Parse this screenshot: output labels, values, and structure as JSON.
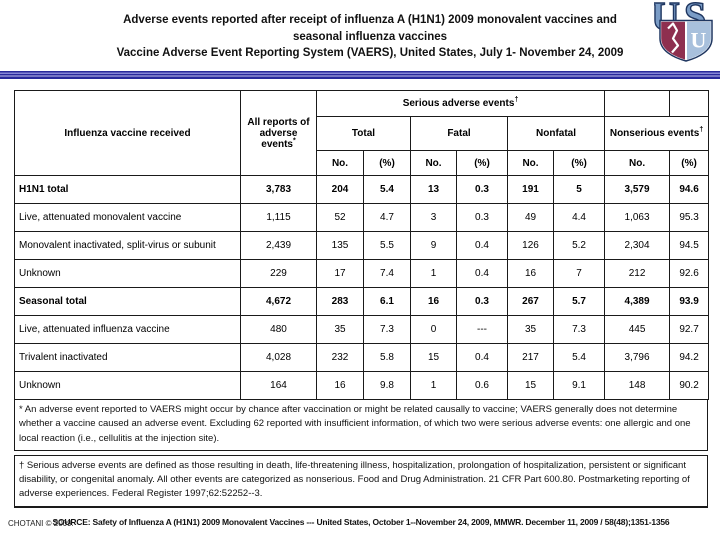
{
  "page": {
    "title_lines": [
      "Adverse events reported after receipt of influenza A (H1N1) 2009 monovalent vaccines and",
      "seasonal influenza vaccines",
      "Vaccine Adverse Event Reporting System (VAERS), United States, July 1- November 24, 2009"
    ],
    "logo_name": "usu-shield-logo",
    "source_line": "SOURCE: Safety of Influenza A (H1N1) 2009 Monovalent Vaccines --- United States, October 1--November 24, 2009, MMWR. December 11, 2009 / 58(48);1351-1356",
    "copyright": "CHOTANI © 2009."
  },
  "colors": {
    "band_dark_blue": "#28289b",
    "band_light_blue": "#8585d6",
    "shield_maroon": "#8e2f4f",
    "shield_steel_blue": "#7a9cc6",
    "shield_light_blue": "#a8c0dc",
    "shield_navy": "#1f3660",
    "table_border": "#1a1a1a"
  },
  "table": {
    "headers": {
      "col_vaccine": "Influenza vaccine received",
      "col_all_reports": "All reports of adverse events",
      "col_all_reports_sup": "*",
      "group_serious": "Serious adverse events",
      "group_serious_sup": "†",
      "sub_total": "Total",
      "sub_fatal": "Fatal",
      "sub_nonfatal": "Nonfatal",
      "col_nonserious": "Nonserious events",
      "col_nonserious_sup": "†",
      "unit_no": "No.",
      "unit_pct": "(%)"
    },
    "rows": [
      {
        "label": "H1N1 total",
        "bold": true,
        "values": [
          "3,783",
          "204",
          "5.4",
          "13",
          "0.3",
          "191",
          "5",
          "3,579",
          "94.6"
        ]
      },
      {
        "label": "Live, attenuated monovalent vaccine",
        "bold": false,
        "values": [
          "1,115",
          "52",
          "4.7",
          "3",
          "0.3",
          "49",
          "4.4",
          "1,063",
          "95.3"
        ]
      },
      {
        "label": "Monovalent inactivated, split-virus or subunit",
        "bold": false,
        "values": [
          "2,439",
          "135",
          "5.5",
          "9",
          "0.4",
          "126",
          "5.2",
          "2,304",
          "94.5"
        ]
      },
      {
        "label": "Unknown",
        "bold": false,
        "values": [
          "229",
          "17",
          "7.4",
          "1",
          "0.4",
          "16",
          "7",
          "212",
          "92.6"
        ]
      },
      {
        "label": "Seasonal total",
        "bold": true,
        "values": [
          "4,672",
          "283",
          "6.1",
          "16",
          "0.3",
          "267",
          "5.7",
          "4,389",
          "93.9"
        ]
      },
      {
        "label": "Live, attenuated influenza vaccine",
        "bold": false,
        "values": [
          "480",
          "35",
          "7.3",
          "0",
          "---",
          "35",
          "7.3",
          "445",
          "92.7"
        ]
      },
      {
        "label": "Trivalent inactivated",
        "bold": false,
        "values": [
          "4,028",
          "232",
          "5.8",
          "15",
          "0.4",
          "217",
          "5.4",
          "3,796",
          "94.2"
        ]
      },
      {
        "label": "Unknown",
        "bold": false,
        "values": [
          "164",
          "16",
          "9.8",
          "1",
          "0.6",
          "15",
          "9.1",
          "148",
          "90.2"
        ]
      }
    ],
    "footnotes": {
      "star": "* An adverse event reported to VAERS might occur by chance after vaccination or might be related causally to vaccine; VAERS generally does not determine whether a vaccine caused an adverse event. Excluding 62 reported with insufficient information, of which two were serious adverse events: one allergic and one local reaction (i.e., cellulitis at the injection site).",
      "dagger": "† Serious adverse events are defined as those resulting in death, life-threatening illness, hospitalization, prolongation of hospitalization, persistent or significant disability, or congenital anomaly. All other events are categorized as nonserious. Food and Drug Administration. 21 CFR Part 600.80. Postmarketing reporting of adverse experiences. Federal Register 1997;62:52252--3."
    }
  }
}
